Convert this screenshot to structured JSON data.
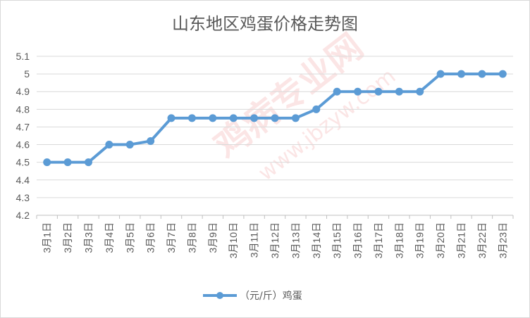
{
  "chart_data": {
    "type": "line",
    "title": "山东地区鸡蛋价格走势图",
    "categories": [
      "3月1日",
      "3月2日",
      "3月3日",
      "3月4日",
      "3月5日",
      "3月6日",
      "3月7日",
      "3月8日",
      "3月9日",
      "3月10日",
      "3月11日",
      "3月12日",
      "3月13日",
      "3月14日",
      "3月15日",
      "3月16日",
      "3月17日",
      "3月18日",
      "3月19日",
      "3月20日",
      "3月21日",
      "3月22日",
      "3月23日"
    ],
    "series": [
      {
        "name": "（元/斤）鸡蛋",
        "color": "#5b9bd5",
        "values": [
          4.5,
          4.5,
          4.5,
          4.6,
          4.6,
          4.62,
          4.75,
          4.75,
          4.75,
          4.75,
          4.75,
          4.75,
          4.75,
          4.8,
          4.9,
          4.9,
          4.9,
          4.9,
          4.9,
          5.0,
          5.0,
          5.0,
          5.0
        ]
      }
    ],
    "ylim": [
      4.2,
      5.1
    ],
    "yticks": [
      "4.2",
      "4.3",
      "4.4",
      "4.5",
      "4.6",
      "4.7",
      "4.8",
      "4.9",
      "5",
      "5.1"
    ],
    "grid": true,
    "legend_position": "bottom",
    "xlabel": "",
    "ylabel": ""
  },
  "watermark": {
    "text_1": "鸡病专业网",
    "text_2": "www.jbzyw.com"
  }
}
